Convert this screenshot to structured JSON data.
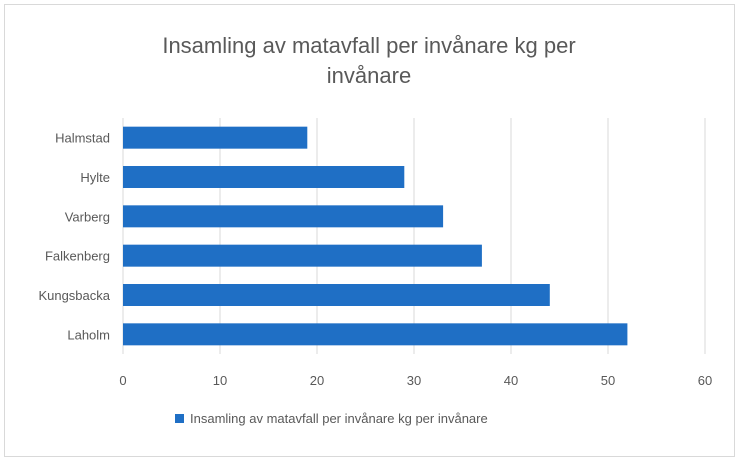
{
  "chart_data": {
    "type": "bar",
    "orientation": "horizontal",
    "title": "Insamling av matavfall per invånare kg per invånare",
    "title_lines": [
      "Insamling av matavfall per invånare kg per",
      "invånare"
    ],
    "categories": [
      "Halmstad",
      "Hylte",
      "Varberg",
      "Falkenberg",
      "Kungsbacka",
      "Laholm"
    ],
    "series": [
      {
        "name": "Insamling av matavfall per invånare kg per invånare",
        "values": [
          19,
          29,
          33,
          37,
          44,
          52
        ],
        "color": "#1f6fc5"
      }
    ],
    "xlim": [
      0,
      60
    ],
    "xticks": [
      0,
      10,
      20,
      30,
      40,
      50,
      60
    ],
    "xlabel": "",
    "ylabel": "",
    "grid": true,
    "legend_position": "bottom"
  }
}
